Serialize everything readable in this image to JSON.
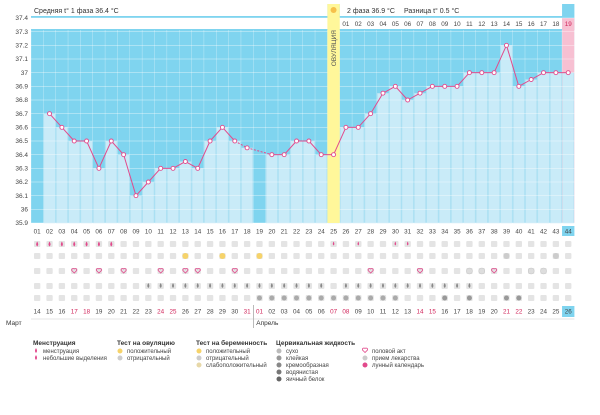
{
  "chart_data": {
    "type": "line",
    "title": "",
    "ylim": [
      35.9,
      37.4
    ],
    "y_ticks": [
      "37.4",
      "37.3",
      "37.2",
      "37.1",
      "37",
      "36.9",
      "36.8",
      "36.7",
      "36.6",
      "36.5",
      "36.4",
      "36.3",
      "36.2",
      "36.1",
      "36",
      "35.9"
    ],
    "cycle_days": [
      "01",
      "02",
      "03",
      "04",
      "05",
      "06",
      "07",
      "08",
      "09",
      "10",
      "11",
      "12",
      "13",
      "14",
      "15",
      "16",
      "17",
      "18",
      "19",
      "20",
      "21",
      "22",
      "23",
      "24",
      "25",
      "26",
      "27",
      "28",
      "29",
      "30",
      "31",
      "32",
      "33",
      "34",
      "35",
      "36",
      "37",
      "38",
      "39",
      "40",
      "41",
      "42",
      "43",
      "44"
    ],
    "dates": [
      "14",
      "15",
      "16",
      "17",
      "18",
      "19",
      "20",
      "21",
      "22",
      "23",
      "24",
      "25",
      "26",
      "27",
      "28",
      "29",
      "30",
      "31",
      "01",
      "02",
      "03",
      "04",
      "05",
      "06",
      "07",
      "08",
      "09",
      "10",
      "11",
      "12",
      "13",
      "14",
      "15",
      "16",
      "17",
      "18",
      "19",
      "20",
      "21",
      "22",
      "23",
      "24",
      "25",
      "26"
    ],
    "date_colors": [
      "#444",
      "#444",
      "#444",
      "#d0245a",
      "#d0245a",
      "#444",
      "#444",
      "#444",
      "#444",
      "#444",
      "#d0245a",
      "#d0245a",
      "#444",
      "#444",
      "#444",
      "#444",
      "#444",
      "#d0245a",
      "#d0245a",
      "#444",
      "#444",
      "#444",
      "#444",
      "#444",
      "#d0245a",
      "#d0245a",
      "#444",
      "#444",
      "#444",
      "#444",
      "#444",
      "#d0245a",
      "#d0245a",
      "#444",
      "#444",
      "#444",
      "#444",
      "#444",
      "#d0245a",
      "#d0245a",
      "#444",
      "#444",
      "#444",
      "#444"
    ],
    "months": [
      "Март",
      "Апрель"
    ],
    "temps": [
      null,
      36.7,
      36.6,
      36.5,
      36.5,
      36.3,
      36.5,
      36.4,
      36.1,
      36.2,
      36.3,
      36.3,
      36.35,
      36.3,
      36.5,
      36.6,
      36.5,
      36.45,
      null,
      36.4,
      36.4,
      36.5,
      36.5,
      36.4,
      36.4,
      36.6,
      36.6,
      36.7,
      36.85,
      36.9,
      36.8,
      36.85,
      36.9,
      36.9,
      36.9,
      37.0,
      37.0,
      37.0,
      37.2,
      36.9,
      36.95,
      37.0,
      37.0,
      37.0
    ],
    "dashed_after_index": 16,
    "phase1_avg": "Средняя t° 1 фаза 36.4 °C",
    "phase2_avg": "2 фаза 36.9 °C",
    "difference": "Разница t° 0.5 °C",
    "ovulation_label": "ОВУЛЯЦИЯ",
    "ovulation_day_index": 24,
    "phase2_day_labels": [
      "01",
      "02",
      "03",
      "04",
      "05",
      "06",
      "07",
      "08",
      "09",
      "10",
      "11",
      "12",
      "13",
      "14",
      "15",
      "16",
      "17",
      "18",
      "19"
    ],
    "highlight_last_day": "19",
    "current_day": "44",
    "current_date": "26",
    "colors": {
      "bg_blue": "#7fd4ef",
      "bar_fill": "#c9ebf8",
      "line": "#e24a8c",
      "marker_fill": "#ffffff",
      "ovulation": "#fff79a",
      "pink": "#f7c0d2",
      "current": "#7fd4ef"
    }
  },
  "legend": {
    "menstruation": {
      "title": "Менструация",
      "items": [
        "менструация",
        "небольшие выделения"
      ]
    },
    "ovulation_test": {
      "title": "Тест на овуляцию",
      "items": [
        "положительный",
        "отрицательный"
      ]
    },
    "pregnancy_test": {
      "title": "Тест на беременность",
      "items": [
        "положительный",
        "отрицательный",
        "слабоположительный"
      ]
    },
    "cervical": {
      "title": "Цервикальная жидкость",
      "items": [
        "сухо",
        "клейкая",
        "кремообразная",
        "водянистая",
        "яичный белок"
      ]
    },
    "other": {
      "items": [
        "половой акт",
        "прием лекарства",
        "лунный календарь"
      ]
    }
  }
}
